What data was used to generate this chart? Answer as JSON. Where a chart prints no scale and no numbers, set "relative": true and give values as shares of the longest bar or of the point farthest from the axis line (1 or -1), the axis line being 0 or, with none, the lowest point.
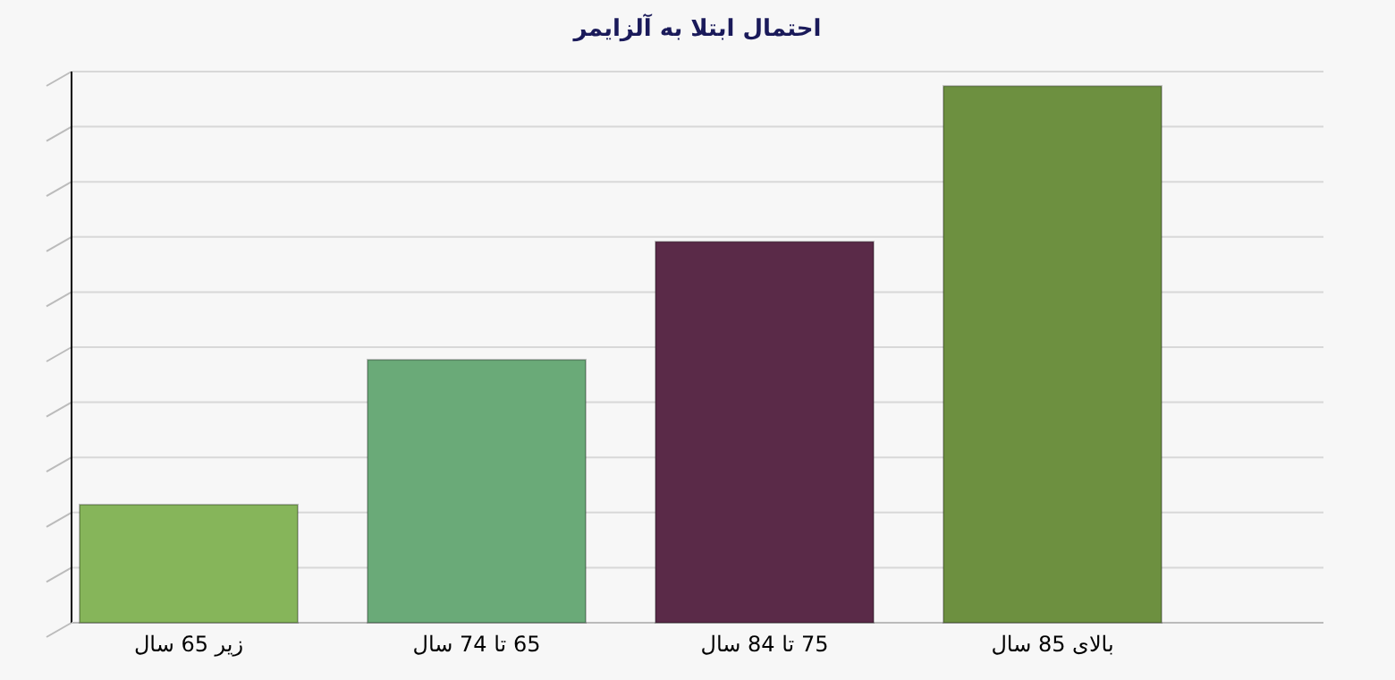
{
  "chart_data": {
    "type": "bar",
    "title": "احتمال ابتلا به آلزایمر",
    "relative": true,
    "grid": "y",
    "categories": [
      "زیر 65 سال",
      "65 تا 74 سال",
      "75 تا 84 سال",
      "بالای 85 سال"
    ],
    "values": [
      0.22,
      0.49,
      0.71,
      1.0
    ],
    "colors": [
      "#86b55a",
      "#6aaa78",
      "#5a2a48",
      "#6d9040"
    ]
  }
}
